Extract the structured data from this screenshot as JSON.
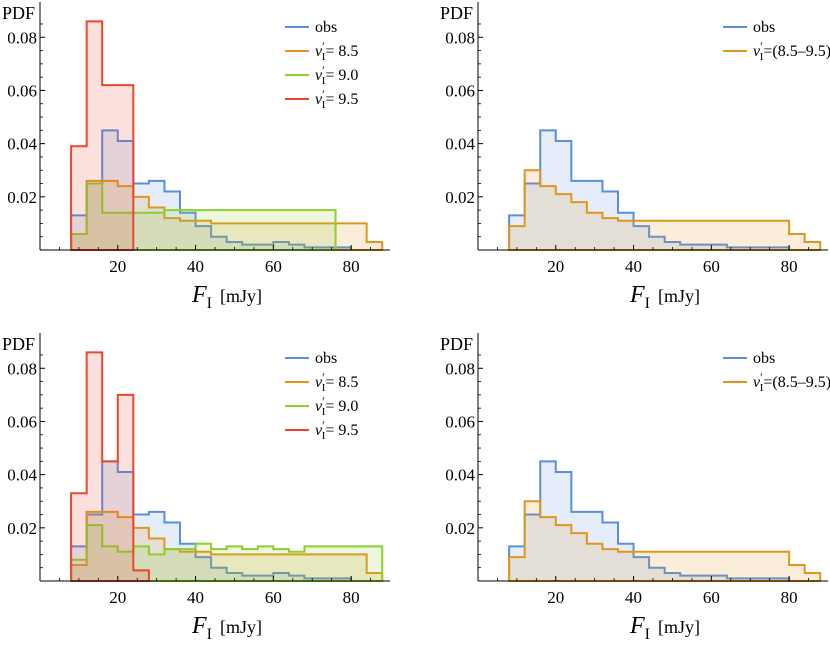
{
  "figure": {
    "colors": {
      "obs": "#5a8fd9",
      "v85": "#e0961e",
      "v90": "#8ccf2e",
      "v95": "#e8472e",
      "range": "#e0961e"
    }
  },
  "chart_data": [
    {
      "type": "histogram",
      "panel": "top-left",
      "title": "",
      "ylabel": "PDF",
      "xlabel": "F",
      "xlabel_sub": "I",
      "xlabel_unit": "[mJy]",
      "xlim": [
        0,
        90
      ],
      "ylim": [
        0,
        0.09
      ],
      "xticks": [
        "20",
        "40",
        "60",
        "80"
      ],
      "xtick_values": [
        20,
        40,
        60,
        80
      ],
      "yticks": [
        "0.02",
        "0.04",
        "0.06",
        "0.08"
      ],
      "ytick_values": [
        0.02,
        0.04,
        0.06,
        0.08
      ],
      "legend_position": "top-right",
      "series": [
        {
          "legend_base": "obs",
          "legend_suffix": "",
          "color_key": "obs",
          "edges": [
            8,
            12,
            16,
            20,
            24,
            28,
            32,
            36,
            40,
            44,
            48,
            52,
            56,
            60,
            64,
            68,
            72,
            76,
            80
          ],
          "values": [
            0.013,
            0.025,
            0.045,
            0.041,
            0.025,
            0.026,
            0.022,
            0.014,
            0.009,
            0.005,
            0.003,
            0.002,
            0.002,
            0.003,
            0.002,
            0.001,
            0.001,
            0.001
          ]
        },
        {
          "legend_base": "v",
          "legend_sub": "I",
          "legend_suffix": "= 8.5",
          "color_key": "v85",
          "edges": [
            8,
            12,
            16,
            20,
            24,
            28,
            32,
            36,
            40,
            44,
            48,
            52,
            56,
            60,
            64,
            68,
            72,
            76,
            80,
            84,
            88
          ],
          "values": [
            0.006,
            0.026,
            0.026,
            0.024,
            0.02,
            0.016,
            0.012,
            0.011,
            0.011,
            0.01,
            0.01,
            0.01,
            0.01,
            0.01,
            0.01,
            0.01,
            0.01,
            0.01,
            0.01,
            0.003
          ]
        },
        {
          "legend_base": "v",
          "legend_sub": "I",
          "legend_suffix": "= 9.0",
          "color_key": "v90",
          "edges": [
            8,
            12,
            16,
            20,
            24,
            28,
            32,
            36,
            40,
            44,
            48,
            52,
            56,
            60,
            64,
            68,
            72,
            76
          ],
          "values": [
            0.006,
            0.025,
            0.014,
            0.014,
            0.014,
            0.014,
            0.015,
            0.015,
            0.015,
            0.015,
            0.015,
            0.015,
            0.015,
            0.015,
            0.015,
            0.015,
            0.015
          ]
        },
        {
          "legend_base": "v",
          "legend_sub": "I",
          "legend_suffix": "= 9.5",
          "color_key": "v95",
          "edges": [
            8,
            12,
            16,
            20,
            24
          ],
          "values": [
            0.039,
            0.086,
            0.062,
            0.062
          ]
        }
      ]
    },
    {
      "type": "histogram",
      "panel": "top-right",
      "title": "",
      "ylabel": "PDF",
      "xlabel": "F",
      "xlabel_sub": "I",
      "xlabel_unit": "[mJy]",
      "xlim": [
        0,
        90
      ],
      "ylim": [
        0,
        0.09
      ],
      "xticks": [
        "20",
        "40",
        "60",
        "80"
      ],
      "xtick_values": [
        20,
        40,
        60,
        80
      ],
      "yticks": [
        "0.02",
        "0.04",
        "0.06",
        "0.08"
      ],
      "ytick_values": [
        0.02,
        0.04,
        0.06,
        0.08
      ],
      "legend_position": "top-right",
      "series": [
        {
          "legend_base": "obs",
          "legend_suffix": "",
          "color_key": "obs",
          "edges": [
            8,
            12,
            16,
            20,
            24,
            28,
            32,
            36,
            40,
            44,
            48,
            52,
            56,
            60,
            64,
            68,
            72,
            76,
            80
          ],
          "values": [
            0.013,
            0.025,
            0.045,
            0.041,
            0.026,
            0.026,
            0.022,
            0.014,
            0.009,
            0.005,
            0.003,
            0.002,
            0.002,
            0.002,
            0.001,
            0.001,
            0.001,
            0.001
          ]
        },
        {
          "legend_base": "v",
          "legend_sub": "I",
          "legend_suffix": "=(8.5–9.5)",
          "color_key": "range",
          "edges": [
            8,
            12,
            16,
            20,
            24,
            28,
            32,
            36,
            40,
            44,
            48,
            52,
            56,
            60,
            64,
            68,
            72,
            76,
            80,
            84,
            88
          ],
          "values": [
            0.009,
            0.03,
            0.024,
            0.021,
            0.018,
            0.014,
            0.012,
            0.011,
            0.011,
            0.011,
            0.011,
            0.011,
            0.011,
            0.011,
            0.011,
            0.011,
            0.011,
            0.011,
            0.006,
            0.003
          ]
        }
      ]
    },
    {
      "type": "histogram",
      "panel": "bottom-left",
      "title": "",
      "ylabel": "PDF",
      "xlabel": "F",
      "xlabel_sub": "I",
      "xlabel_unit": "[mJy]",
      "xlim": [
        0,
        90
      ],
      "ylim": [
        0,
        0.09
      ],
      "xticks": [
        "20",
        "40",
        "60",
        "80"
      ],
      "xtick_values": [
        20,
        40,
        60,
        80
      ],
      "yticks": [
        "0.02",
        "0.04",
        "0.06",
        "0.08"
      ],
      "ytick_values": [
        0.02,
        0.04,
        0.06,
        0.08
      ],
      "legend_position": "top-right",
      "series": [
        {
          "legend_base": "obs",
          "legend_suffix": "",
          "color_key": "obs",
          "edges": [
            8,
            12,
            16,
            20,
            24,
            28,
            32,
            36,
            40,
            44,
            48,
            52,
            56,
            60,
            64,
            68,
            72,
            76,
            80
          ],
          "values": [
            0.013,
            0.025,
            0.045,
            0.041,
            0.025,
            0.026,
            0.022,
            0.014,
            0.009,
            0.005,
            0.003,
            0.002,
            0.002,
            0.003,
            0.002,
            0.001,
            0.001,
            0.001
          ]
        },
        {
          "legend_base": "v",
          "legend_sub": "I",
          "legend_suffix": "= 8.5",
          "color_key": "v85",
          "edges": [
            8,
            12,
            16,
            20,
            24,
            28,
            32,
            36,
            40,
            44,
            48,
            52,
            56,
            60,
            64,
            68,
            72,
            76,
            80,
            84,
            88
          ],
          "values": [
            0.006,
            0.026,
            0.026,
            0.024,
            0.02,
            0.016,
            0.012,
            0.011,
            0.011,
            0.01,
            0.01,
            0.01,
            0.01,
            0.01,
            0.01,
            0.01,
            0.01,
            0.01,
            0.01,
            0.003
          ]
        },
        {
          "legend_base": "v",
          "legend_sub": "I",
          "legend_suffix": "= 9.0",
          "color_key": "v90",
          "edges": [
            8,
            12,
            16,
            20,
            24,
            28,
            32,
            36,
            40,
            44,
            48,
            52,
            56,
            60,
            64,
            68,
            72,
            76,
            80,
            84,
            88
          ],
          "values": [
            0.008,
            0.021,
            0.013,
            0.011,
            0.013,
            0.01,
            0.012,
            0.012,
            0.014,
            0.012,
            0.013,
            0.012,
            0.013,
            0.012,
            0.011,
            0.013,
            0.013,
            0.013,
            0.013,
            0.013
          ]
        },
        {
          "legend_base": "v",
          "legend_sub": "I",
          "legend_suffix": "= 9.5",
          "color_key": "v95",
          "edges": [
            8,
            12,
            16,
            20,
            24,
            28
          ],
          "values": [
            0.033,
            0.086,
            0.045,
            0.07,
            0.004
          ]
        }
      ]
    },
    {
      "type": "histogram",
      "panel": "bottom-right",
      "title": "",
      "ylabel": "PDF",
      "xlabel": "F",
      "xlabel_sub": "I",
      "xlabel_unit": "[mJy]",
      "xlim": [
        0,
        90
      ],
      "ylim": [
        0,
        0.09
      ],
      "xticks": [
        "20",
        "40",
        "60",
        "80"
      ],
      "xtick_values": [
        20,
        40,
        60,
        80
      ],
      "yticks": [
        "0.02",
        "0.04",
        "0.06",
        "0.08"
      ],
      "ytick_values": [
        0.02,
        0.04,
        0.06,
        0.08
      ],
      "legend_position": "top-right",
      "series": [
        {
          "legend_base": "obs",
          "legend_suffix": "",
          "color_key": "obs",
          "edges": [
            8,
            12,
            16,
            20,
            24,
            28,
            32,
            36,
            40,
            44,
            48,
            52,
            56,
            60,
            64,
            68,
            72,
            76,
            80
          ],
          "values": [
            0.013,
            0.025,
            0.045,
            0.041,
            0.026,
            0.026,
            0.022,
            0.014,
            0.009,
            0.005,
            0.003,
            0.002,
            0.002,
            0.002,
            0.001,
            0.001,
            0.001,
            0.001
          ]
        },
        {
          "legend_base": "v",
          "legend_sub": "I",
          "legend_suffix": "=(8.5–9.5)",
          "color_key": "range",
          "edges": [
            8,
            12,
            16,
            20,
            24,
            28,
            32,
            36,
            40,
            44,
            48,
            52,
            56,
            60,
            64,
            68,
            72,
            76,
            80,
            84,
            88
          ],
          "values": [
            0.009,
            0.03,
            0.024,
            0.021,
            0.018,
            0.014,
            0.012,
            0.011,
            0.011,
            0.011,
            0.011,
            0.011,
            0.011,
            0.011,
            0.011,
            0.011,
            0.011,
            0.011,
            0.006,
            0.003
          ]
        }
      ]
    }
  ]
}
